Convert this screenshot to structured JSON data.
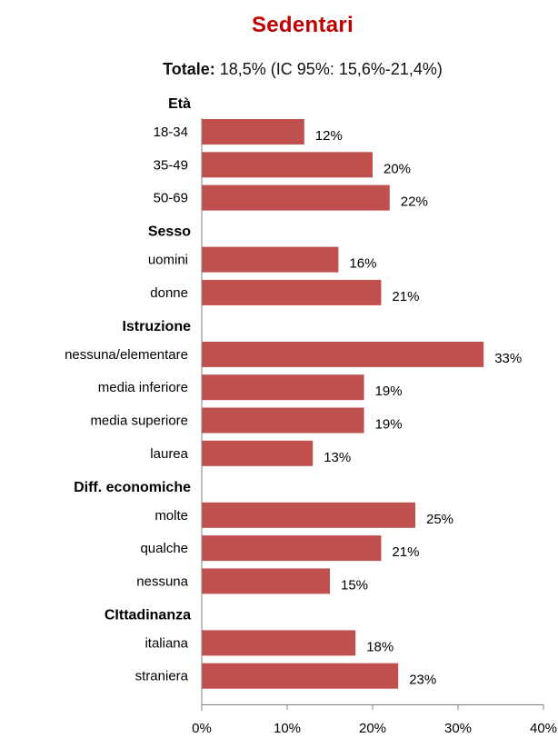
{
  "colors": {
    "bar": "#c0504d",
    "title": "#c00000",
    "text": "#000000",
    "axis": "#808080"
  },
  "title": "Sedentari",
  "subtitle": {
    "bold": "Totale:",
    "rest": " 18,5% (IC 95%: 15,6%-21,4%)"
  },
  "chart_data": {
    "type": "bar",
    "orientation": "horizontal",
    "title": "Sedentari",
    "subtitle": "Totale: 18,5% (IC 95%: 15,6%-21,4%)",
    "xlim": [
      0,
      40
    ],
    "xticks": [
      "0%",
      "10%",
      "20%",
      "30%",
      "40%"
    ],
    "grid": false,
    "groups": [
      {
        "name": "Età",
        "categories": [
          "18-34",
          "35-49",
          "50-69"
        ],
        "values": [
          12,
          20,
          22
        ]
      },
      {
        "name": "Sesso",
        "categories": [
          "uomini",
          "donne"
        ],
        "values": [
          16,
          21
        ]
      },
      {
        "name": "Istruzione",
        "categories": [
          "nessuna/elementare",
          "media inferiore",
          "media superiore",
          "laurea"
        ],
        "values": [
          33,
          19,
          19,
          13
        ]
      },
      {
        "name": "Diff. economiche",
        "categories": [
          "molte",
          "qualche",
          "nessuna"
        ],
        "values": [
          25,
          21,
          15
        ]
      },
      {
        "name": "CIttadinanza",
        "categories": [
          "italiana",
          "straniera"
        ],
        "values": [
          18,
          23
        ]
      }
    ]
  }
}
